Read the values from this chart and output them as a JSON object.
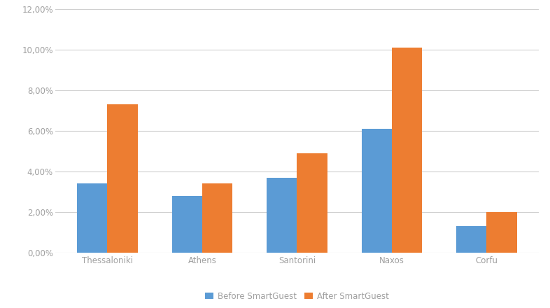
{
  "categories": [
    "Thessaloniki",
    "Athens",
    "Santorini",
    "Naxos",
    "Corfu"
  ],
  "before": [
    0.034,
    0.028,
    0.037,
    0.061,
    0.013
  ],
  "after": [
    0.073,
    0.034,
    0.049,
    0.101,
    0.02
  ],
  "before_color": "#5B9BD5",
  "after_color": "#ED7D31",
  "before_label": "Before SmartGuest",
  "after_label": "After SmartGuest",
  "ylim": [
    0,
    0.12
  ],
  "yticks": [
    0.0,
    0.02,
    0.04,
    0.06,
    0.08,
    0.1,
    0.12
  ],
  "background_color": "#FFFFFF",
  "grid_color": "#D0D0D0",
  "tick_color": "#A0A0A0",
  "bar_width": 0.32,
  "fig_width": 7.86,
  "fig_height": 4.4,
  "dpi": 100
}
